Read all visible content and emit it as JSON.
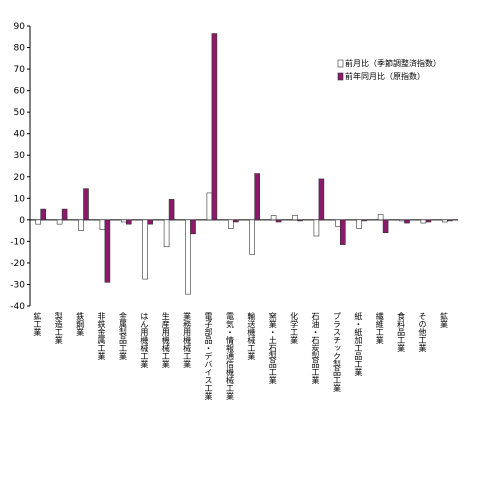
{
  "chart_data": {
    "type": "bar",
    "categories": [
      "鉱工業",
      "製造工業",
      "鉄鋼業",
      "非鉄金属工業",
      "金属製品工業",
      "はん用機械工業",
      "生産用機械工業",
      "業務用機械工業",
      "電子部品・デバイス工業",
      "電気・情報通信機械工業",
      "輸送機械工業",
      "窯業・土石製品工業",
      "化学工業",
      "石油・石炭製品工業",
      "プラスチック製品工業",
      "紙・紙加工品工業",
      "繊維工業",
      "食料品工業",
      "その他工業",
      "鉱業"
    ],
    "series": [
      {
        "name": "前月比（季節調整済指数）",
        "color": "#ffffff",
        "values": [
          -2,
          -2,
          -5,
          -4.5,
          -1,
          -27.5,
          -12.5,
          -34.5,
          12.5,
          -4,
          -16,
          2,
          2,
          -7.5,
          -3,
          -4,
          2.5,
          -0.5,
          -1.5,
          -1
        ]
      },
      {
        "name": "前年同月比（原指数）",
        "color": "#8b1a6b",
        "values": [
          5,
          5,
          14.5,
          -29,
          -2,
          -2,
          9.5,
          -6.5,
          86.5,
          -1,
          21.5,
          -1,
          -0.5,
          19,
          -11.5,
          -0.5,
          -6,
          -1.5,
          -1,
          -0.5
        ]
      }
    ],
    "ylim": [
      -40,
      90
    ],
    "yticks": [
      90,
      80,
      70,
      60,
      50,
      40,
      30,
      20,
      10,
      0,
      -10,
      -20,
      -30,
      -40
    ],
    "grid": false,
    "legend": "top-right"
  }
}
